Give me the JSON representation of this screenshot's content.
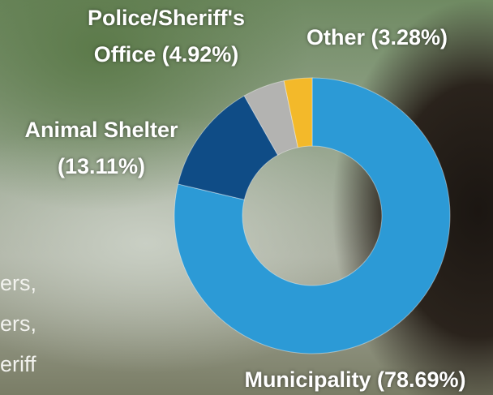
{
  "chart_data": {
    "type": "donut",
    "categories": [
      "Municipality (78.69%)",
      "Animal Shelter (13.11%)",
      "Police/Sheriff's Office (4.92%)",
      "Other (3.28%)"
    ],
    "values": [
      78.69,
      13.11,
      4.92,
      3.28
    ],
    "colors": [
      "#2c9ad6",
      "#0f4c86",
      "#b3b3b1",
      "#f3b92a"
    ]
  },
  "background_text": [
    "ers,",
    "ers,",
    "eriff"
  ]
}
